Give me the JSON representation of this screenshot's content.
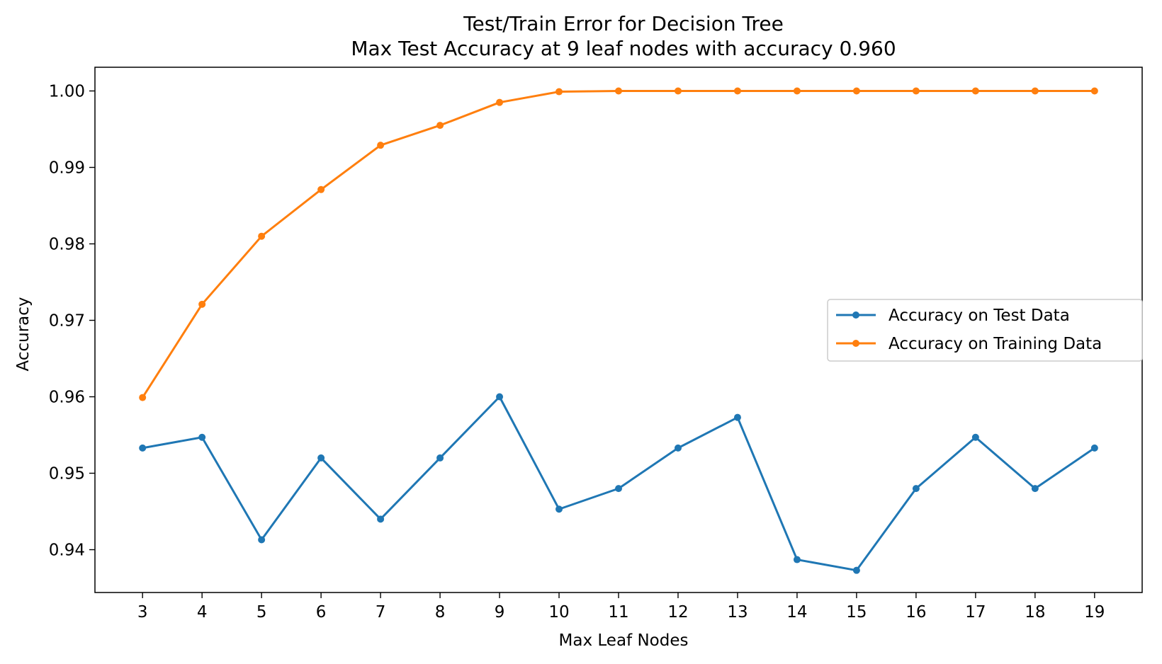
{
  "chart_data": {
    "type": "line",
    "title": "Test/Train Error for Decision Tree",
    "subtitle": "Max Test Accuracy at 9 leaf nodes with accuracy 0.960",
    "xlabel": "Max Leaf Nodes",
    "ylabel": "Accuracy",
    "x": [
      3,
      4,
      5,
      6,
      7,
      8,
      9,
      10,
      11,
      12,
      13,
      14,
      15,
      16,
      17,
      18,
      19
    ],
    "x_tick_labels": [
      "3",
      "4",
      "5",
      "6",
      "7",
      "8",
      "9",
      "10",
      "11",
      "12",
      "13",
      "14",
      "15",
      "16",
      "17",
      "18",
      "19"
    ],
    "y_ticks": [
      0.94,
      0.95,
      0.96,
      0.97,
      0.98,
      0.99,
      1.0
    ],
    "y_tick_labels": [
      "0.94",
      "0.95",
      "0.96",
      "0.97",
      "0.98",
      "0.99",
      "1.00"
    ],
    "xlim": [
      2.2,
      19.8
    ],
    "ylim": [
      0.9344,
      1.0031
    ],
    "grid": false,
    "legend_position": "center-right",
    "series": [
      {
        "name": "Accuracy on Test Data",
        "color": "#1f77b4",
        "marker": "circle",
        "values": [
          0.9533,
          0.9547,
          0.9413,
          0.952,
          0.944,
          0.952,
          0.96,
          0.9453,
          0.948,
          0.9533,
          0.9573,
          0.9387,
          0.9373,
          0.948,
          0.9547,
          0.948,
          0.9533
        ]
      },
      {
        "name": "Accuracy on Training Data",
        "color": "#ff7f0e",
        "marker": "circle",
        "values": [
          0.9599,
          0.9721,
          0.981,
          0.9871,
          0.9929,
          0.9955,
          0.9985,
          0.9999,
          1.0,
          1.0,
          1.0,
          1.0,
          1.0,
          1.0,
          1.0,
          1.0,
          1.0
        ]
      }
    ]
  }
}
